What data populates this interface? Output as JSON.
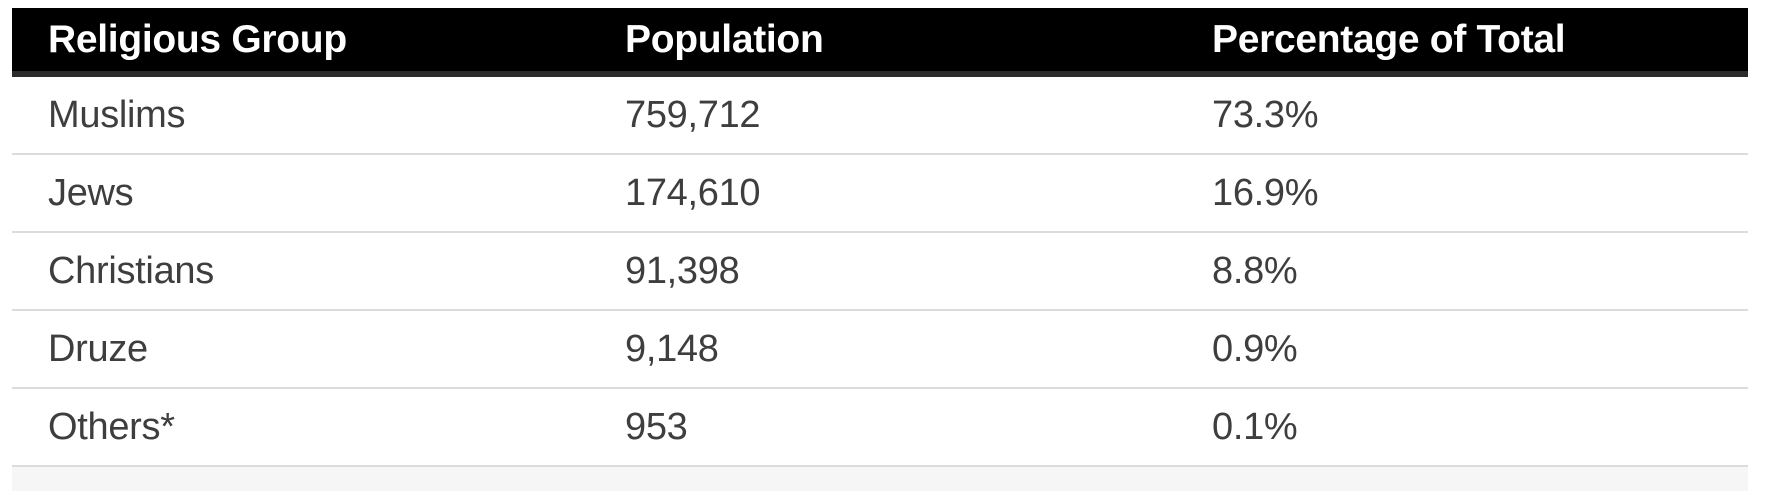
{
  "table": {
    "columns": [
      {
        "label": "Religious Group"
      },
      {
        "label": "Population"
      },
      {
        "label": "Percentage of Total"
      }
    ],
    "rows": [
      {
        "group": "Muslims",
        "population": "759,712",
        "percentage": "73.3%"
      },
      {
        "group": "Jews",
        "population": "174,610",
        "percentage": "16.9%"
      },
      {
        "group": "Christians",
        "population": "91,398",
        "percentage": "8.8%"
      },
      {
        "group": "Druze",
        "population": "9,148",
        "percentage": "0.9%"
      },
      {
        "group": "Others*",
        "population": "953",
        "percentage": "0.1%"
      }
    ]
  },
  "colors": {
    "header_background": "#000000",
    "header_text": "#ffffff",
    "header_bottom_border": "#2b2b2b",
    "body_text": "#3e3e3e",
    "row_divider": "#dcdcdc",
    "partial_row_background": "#f6f6f6",
    "page_background": "#ffffff"
  },
  "chart_data": {
    "type": "table",
    "columns": [
      "Religious Group",
      "Population",
      "Percentage of Total"
    ],
    "rows": [
      [
        "Muslims",
        "759,712",
        "73.3%"
      ],
      [
        "Jews",
        "174,610",
        "16.9%"
      ],
      [
        "Christians",
        "91,398",
        "8.8%"
      ],
      [
        "Druze",
        "9,148",
        "0.9%"
      ],
      [
        "Others*",
        "953",
        "0.1%"
      ]
    ],
    "population_values": [
      759712,
      174610,
      91398,
      9148,
      953
    ],
    "percentage_values": [
      73.3,
      16.9,
      8.8,
      0.9,
      0.1
    ]
  }
}
